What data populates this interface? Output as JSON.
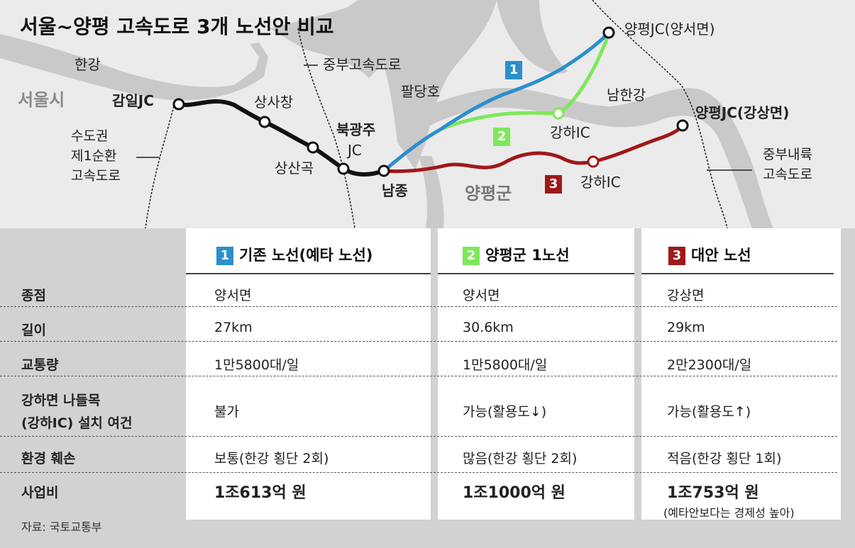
{
  "title": "서울~양평 고속도로 3개 노선안 비교",
  "colors": {
    "route1": "#2a8fcd",
    "route2": "#7ee85a",
    "route3": "#a01818",
    "existing": "#111111",
    "river": "#cfcfcf"
  },
  "map_labels": {
    "han_river": "한강",
    "seoul": "서울시",
    "gangil_jc": "감일JC",
    "sangsachang": "상사창",
    "sangsangok": "상산곡",
    "bukgwangju_1": "북광주",
    "bukgwangju_2": "JC",
    "namjong": "남종",
    "jungbu_expressway": "중부고속도로",
    "paldang_lake": "팔당호",
    "ring_1": "수도권",
    "ring_2": "제1순환",
    "ring_3": "고속도로",
    "yangpyeong_jc_yangseo": "양평JC(양서면)",
    "yangpyeong_jc_gangsang": "양평JC(강상면)",
    "nam_han_river": "남한강",
    "gangha_ic_2": "강하IC",
    "gangha_ic_3": "강하IC",
    "yangpyeong_gun": "양평군",
    "jungbu_inland_1": "중부내륙",
    "jungbu_inland_2": "고속도로",
    "badge_1": "1",
    "badge_2": "2",
    "badge_3": "3"
  },
  "table": {
    "columns": [
      {
        "num": "1",
        "name": "기존 노선(예타 노선)"
      },
      {
        "num": "2",
        "name": "양평군 1노선"
      },
      {
        "num": "3",
        "name": "대안 노선"
      }
    ],
    "rows": {
      "endpoint": {
        "label": "종점",
        "values": [
          "양서면",
          "양서면",
          "강상면"
        ]
      },
      "length": {
        "label": "길이",
        "values": [
          "27km",
          "30.6km",
          "29km"
        ]
      },
      "traffic": {
        "label": "교통량",
        "values": [
          "1만5800대/일",
          "1만5800대/일",
          "2만2300대/일"
        ]
      },
      "ic": {
        "label_1": "강하면 나들목",
        "label_2": "(강하IC) 설치 여건",
        "values": [
          "불가",
          "가능(활용도↓)",
          "가능(활용도↑)"
        ]
      },
      "environment": {
        "label": "환경 훼손",
        "values": [
          "보통(한강 횡단 2회)",
          "많음(한강 횡단 2회)",
          "적음(한강 횡단 1회)"
        ]
      },
      "cost": {
        "label": "사업비",
        "values": [
          "1조613억 원",
          "1조1000억 원",
          "1조753억 원"
        ],
        "note": "(예타안보다는 경제성 높아)"
      }
    }
  },
  "source": "자료: 국토교통부"
}
